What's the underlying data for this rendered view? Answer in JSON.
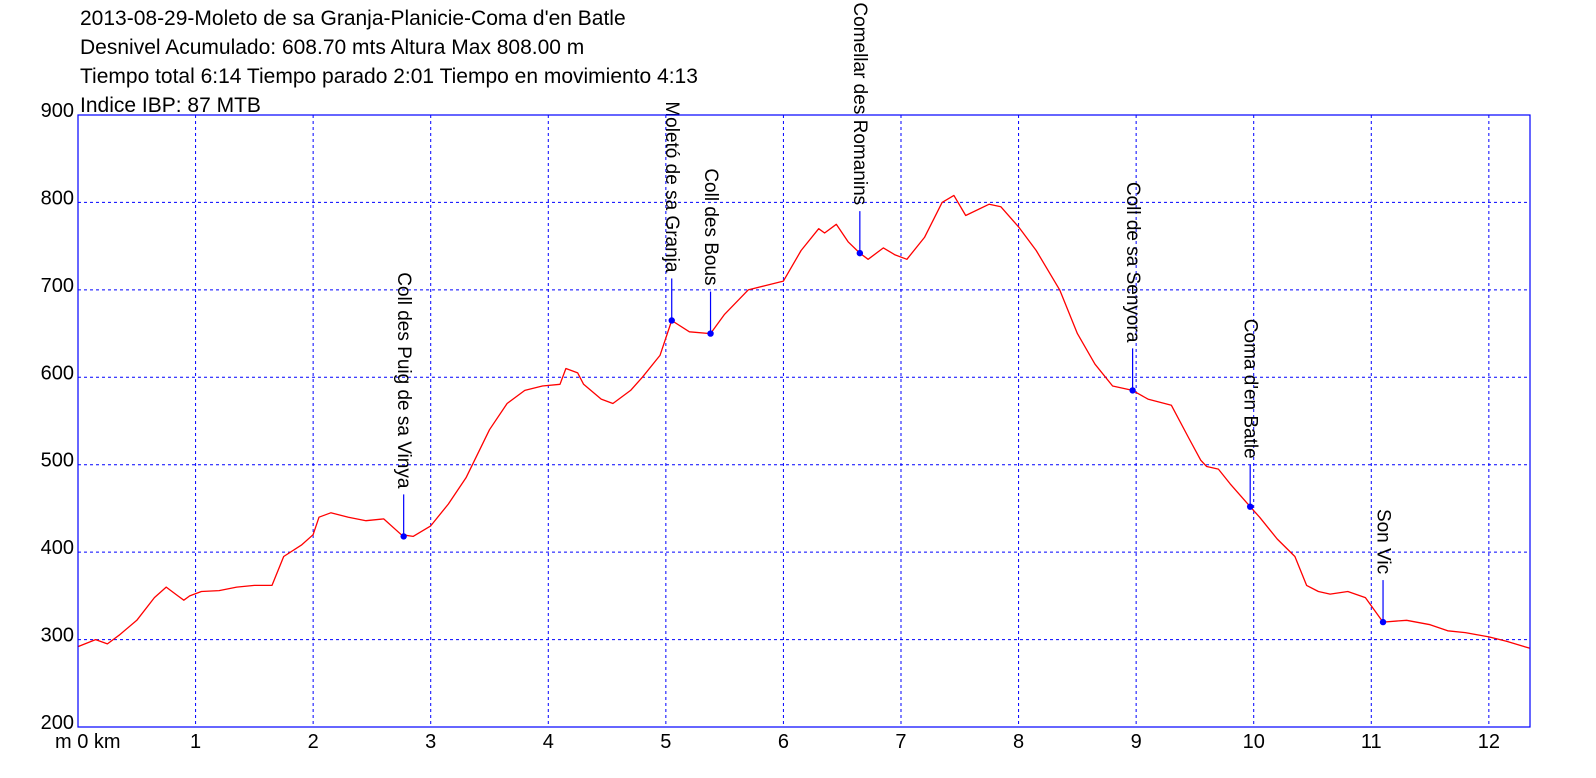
{
  "header": {
    "line1": "2013-08-29-Moleto de sa Granja-Planicie-Coma d'en Batle",
    "line2": "Desnivel Acumulado: 608.70 mts  Altura Max 808.00 m",
    "line3": "Tiempo total 6:14 Tiempo parado 2:01 Tiempo en movimiento 4:13",
    "line4": "Indice IBP: 87 MTB"
  },
  "chart_data": {
    "type": "line",
    "xlim": [
      0,
      12.35
    ],
    "ylim": [
      200,
      900
    ],
    "x_ticks": [
      1,
      2,
      3,
      4,
      5,
      6,
      7,
      8,
      9,
      10,
      11,
      12
    ],
    "x_tick_labels": [
      "1",
      "2",
      "3",
      "4",
      "5",
      "6",
      "7",
      "8",
      "9",
      "10",
      "11",
      "12"
    ],
    "x_origin_label": "m 0 km",
    "y_ticks": [
      200,
      300,
      400,
      500,
      600,
      700,
      800,
      900
    ],
    "y_tick_labels": [
      "200",
      "300",
      "400",
      "500",
      "600",
      "700",
      "800",
      "900"
    ],
    "grid": true,
    "colors": {
      "profile": "#ff0000",
      "grid": "#0000ff",
      "frame": "#0000ff",
      "waypoint": "#0000ff"
    },
    "series": [
      {
        "x": [
          0,
          0.15,
          0.25,
          0.35,
          0.5,
          0.65,
          0.75,
          0.85,
          0.9,
          0.95,
          1.05,
          1.2,
          1.35,
          1.5,
          1.65,
          1.75,
          1.9,
          2.0,
          2.05,
          2.15,
          2.3,
          2.45,
          2.6,
          2.75,
          2.85,
          3.0,
          3.15,
          3.3,
          3.5,
          3.65,
          3.8,
          3.95,
          4.1,
          4.15,
          4.25,
          4.3,
          4.45,
          4.55,
          4.7,
          4.8,
          4.95,
          5.05,
          5.2,
          5.38,
          5.5,
          5.7,
          5.85,
          6.0,
          6.15,
          6.3,
          6.35,
          6.45,
          6.55,
          6.65,
          6.72,
          6.85,
          6.95,
          7.05,
          7.2,
          7.35,
          7.45,
          7.55,
          7.75,
          7.85,
          8.0,
          8.15,
          8.35,
          8.5,
          8.65,
          8.8,
          8.97,
          9.1,
          9.3,
          9.45,
          9.55,
          9.6,
          9.7,
          9.8,
          9.97,
          10.05,
          10.2,
          10.35,
          10.45,
          10.55,
          10.65,
          10.8,
          10.95,
          11.1,
          11.3,
          11.5,
          11.65,
          11.8,
          12.0,
          12.15,
          12.35
        ],
        "y": [
          292,
          300,
          295,
          305,
          322,
          348,
          360,
          350,
          345,
          350,
          355,
          356,
          360,
          362,
          362,
          395,
          408,
          420,
          440,
          445,
          440,
          436,
          438,
          420,
          418,
          430,
          455,
          485,
          540,
          570,
          585,
          590,
          592,
          610,
          605,
          592,
          575,
          570,
          585,
          600,
          625,
          665,
          652,
          650,
          672,
          700,
          705,
          710,
          745,
          770,
          765,
          775,
          755,
          742,
          735,
          748,
          740,
          735,
          760,
          800,
          808,
          785,
          798,
          795,
          772,
          745,
          700,
          650,
          615,
          590,
          585,
          575,
          568,
          530,
          505,
          498,
          495,
          478,
          452,
          440,
          415,
          395,
          362,
          355,
          352,
          355,
          348,
          320,
          322,
          317,
          310,
          308,
          303,
          298,
          290
        ]
      }
    ],
    "waypoints": [
      {
        "label": "Coll des Puig de sa Vinya",
        "x": 2.77,
        "y": 418
      },
      {
        "label": "Moletó de sa Granja",
        "x": 5.05,
        "y": 665
      },
      {
        "label": "Coll des Bous",
        "x": 5.38,
        "y": 650
      },
      {
        "label": "Comellar des Romanins",
        "x": 6.65,
        "y": 742
      },
      {
        "label": "Coll de sa Senyora",
        "x": 8.97,
        "y": 585
      },
      {
        "label": "Coma d'en Batle",
        "x": 9.97,
        "y": 452
      },
      {
        "label": "Son Vic",
        "x": 11.1,
        "y": 320
      }
    ]
  }
}
